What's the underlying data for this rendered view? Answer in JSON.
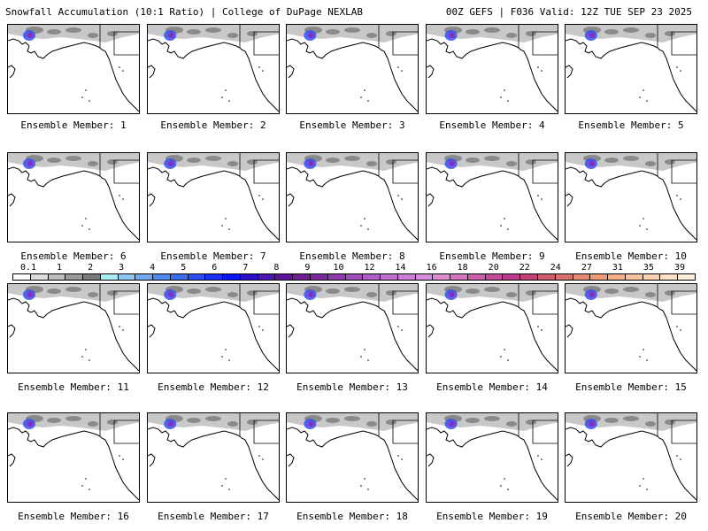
{
  "header": {
    "left_title": "Snowfall Accumulation (10:1 Ratio) | College of DuPage NEXLAB",
    "right_title": "00Z GEFS | F036 Valid: 12Z TUE SEP 23 2025"
  },
  "legend": {
    "labels": [
      "0.1",
      "1",
      "2",
      "3",
      "4",
      "5",
      "6",
      "7",
      "8",
      "9",
      "10",
      "12",
      "14",
      "16",
      "18",
      "20",
      "22",
      "24",
      "27",
      "31",
      "35",
      "39"
    ],
    "colors": [
      "#ffffff",
      "#dcdcdc",
      "#bebebe",
      "#9a9a9a",
      "#7a7a7a",
      "#a8ecf4",
      "#8ec6f2",
      "#6fa8ef",
      "#5087ec",
      "#3a6cf0",
      "#2a4ef2",
      "#1a2ff3",
      "#0b14f2",
      "#2a0fc9",
      "#4a15b0",
      "#62139e",
      "#6f1d95",
      "#7a2a9c",
      "#8e3aac",
      "#a24cbc",
      "#b05ec6",
      "#bf6fd0",
      "#cd7ed8",
      "#d58cdc",
      "#dd8dcf",
      "#d575c0",
      "#cc5cae",
      "#c44a9e",
      "#bd3b8e",
      "#c24276",
      "#ce5a6e",
      "#d8706e",
      "#e48a70",
      "#ee9c78",
      "#f4b084",
      "#f8c39c",
      "#fbd3b2",
      "#fde2c8",
      "#fef0dc"
    ]
  },
  "panels": [
    {
      "label": "Ensemble Member: 1"
    },
    {
      "label": "Ensemble Member: 2"
    },
    {
      "label": "Ensemble Member: 3"
    },
    {
      "label": "Ensemble Member: 4"
    },
    {
      "label": "Ensemble Member: 5"
    },
    {
      "label": "Ensemble Member: 6"
    },
    {
      "label": "Ensemble Member: 7"
    },
    {
      "label": "Ensemble Member: 8"
    },
    {
      "label": "Ensemble Member: 9"
    },
    {
      "label": "Ensemble Member: 10"
    },
    {
      "label": "Ensemble Member: 11"
    },
    {
      "label": "Ensemble Member: 12"
    },
    {
      "label": "Ensemble Member: 13"
    },
    {
      "label": "Ensemble Member: 14"
    },
    {
      "label": "Ensemble Member: 15"
    },
    {
      "label": "Ensemble Member: 16"
    },
    {
      "label": "Ensemble Member: 17"
    },
    {
      "label": "Ensemble Member: 18"
    },
    {
      "label": "Ensemble Member: 19"
    },
    {
      "label": "Ensemble Member: 20"
    }
  ],
  "colors": {
    "coast": "#000000",
    "border": "#000000",
    "snow_light": "#c8c8c8",
    "snow_mid": "#8a8a8a",
    "snow_blue": "#3a4ef0",
    "snow_purple": "#8a2bc0"
  }
}
